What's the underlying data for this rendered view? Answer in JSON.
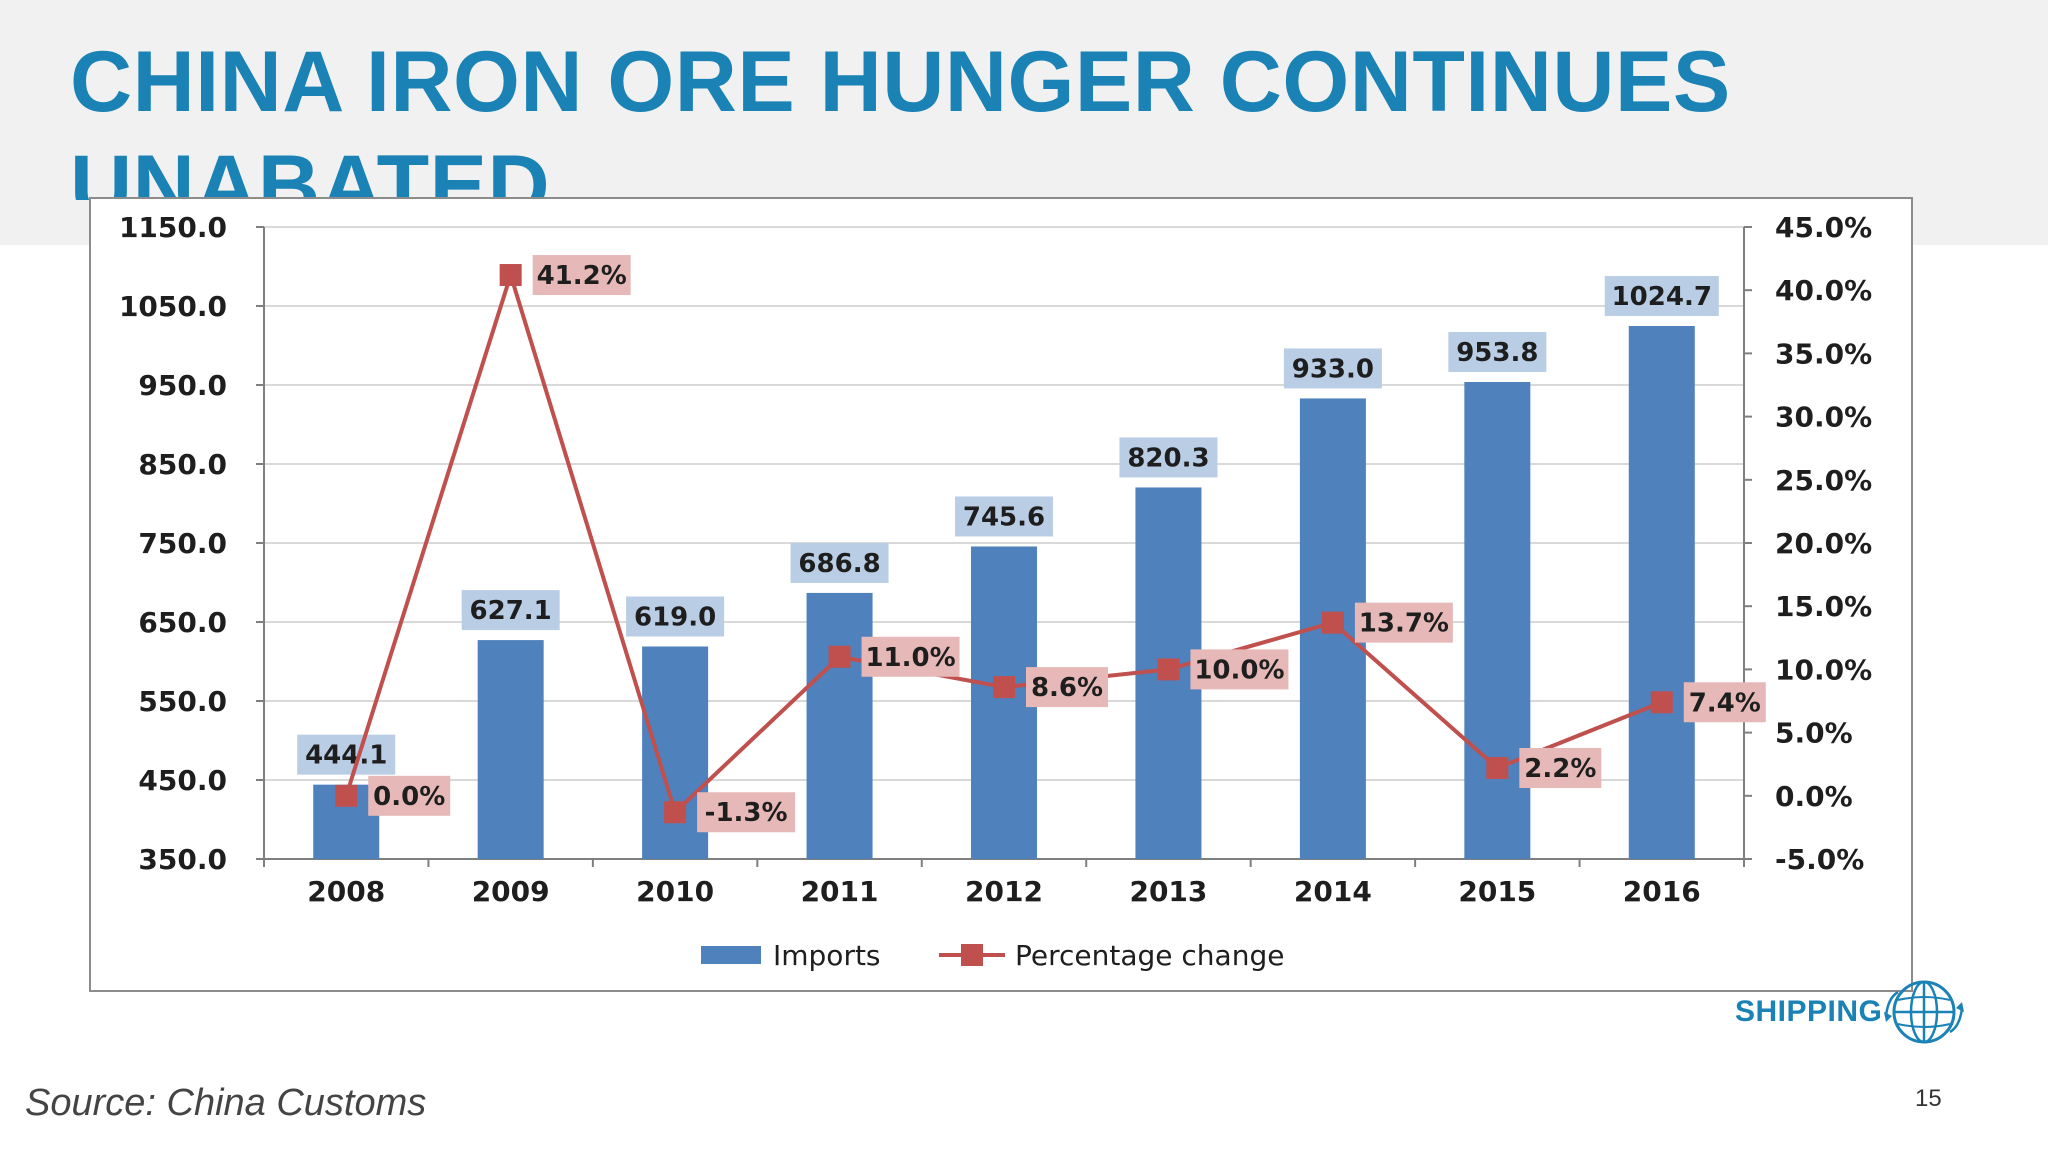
{
  "slide": {
    "title": "CHINA IRON ORE HUNGER CONTINUES UNABATED",
    "source": "Source: China Customs",
    "page_number": "15",
    "logo_text": "SHIPPING",
    "logo_icon": "globe-icon"
  },
  "colors": {
    "title": "#1a82b4",
    "bar": "#4f81bd",
    "bar_label_bg": "#b9cde5",
    "line": "#c0504d",
    "line_label_bg": "#e6b9b8",
    "grid": "#d9d9d9",
    "axis": "#7f7f7f"
  },
  "chart_data": {
    "type": "bar",
    "categories": [
      "2008",
      "2009",
      "2010",
      "2011",
      "2012",
      "2013",
      "2014",
      "2015",
      "2016"
    ],
    "series": [
      {
        "name": "Imports",
        "type": "bar",
        "axis": "left",
        "values": [
          444.1,
          627.1,
          619.0,
          686.8,
          745.6,
          820.3,
          933.0,
          953.8,
          1024.7
        ],
        "labels": [
          "444.1",
          "627.1",
          "619.0",
          "686.8",
          "745.6",
          "820.3",
          "933.0",
          "953.8",
          "1024.7"
        ]
      },
      {
        "name": "Percentage change",
        "type": "line",
        "axis": "right",
        "values": [
          0.0,
          41.2,
          -1.3,
          11.0,
          8.6,
          10.0,
          13.7,
          2.2,
          7.4
        ],
        "labels": [
          "0.0%",
          "41.2%",
          "-1.3%",
          "11.0%",
          "8.6%",
          "10.0%",
          "13.7%",
          "2.2%",
          "7.4%"
        ]
      }
    ],
    "y_left": {
      "range": [
        350,
        1150
      ],
      "ticks": [
        "350.0",
        "450.0",
        "550.0",
        "650.0",
        "750.0",
        "850.0",
        "950.0",
        "1050.0",
        "1150.0"
      ]
    },
    "y_right": {
      "range": [
        -5,
        45
      ],
      "ticks": [
        "-5.0%",
        "0.0%",
        "5.0%",
        "10.0%",
        "15.0%",
        "20.0%",
        "25.0%",
        "30.0%",
        "35.0%",
        "40.0%",
        "45.0%"
      ]
    },
    "legend": {
      "position": "bottom-center",
      "entries": [
        "Imports",
        "Percentage change"
      ]
    },
    "grid": true
  }
}
